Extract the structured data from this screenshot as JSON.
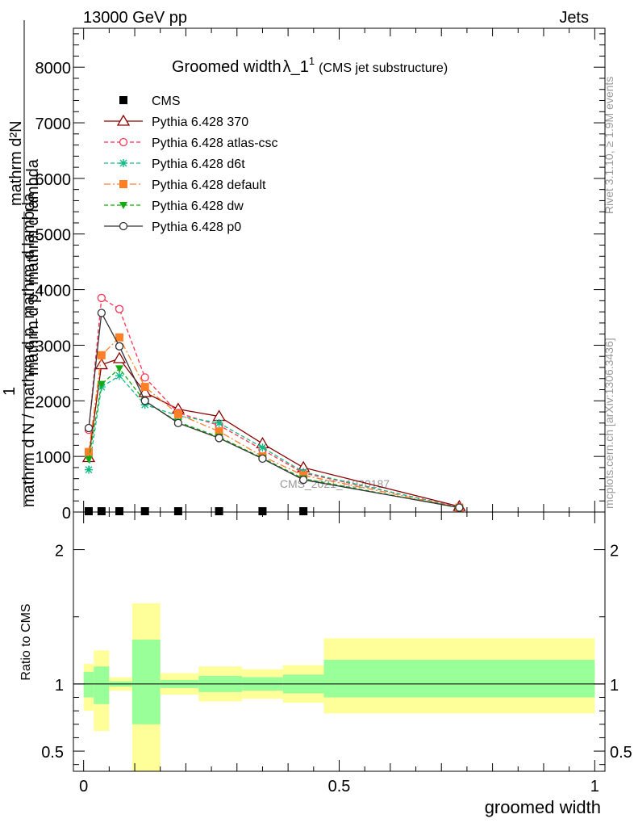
{
  "header": {
    "left": "13000 GeV pp",
    "right": "Jets"
  },
  "side_labels": {
    "top": "Rivet 3.1.10, ≥ 1.9M events",
    "bottom": "mcplots.cern.ch [arXiv:1306.3436]"
  },
  "watermark": "CMS_2021_I1920187",
  "colors": {
    "cms": "#000000",
    "p370": "#8b0000",
    "atlas": "#ff3355",
    "d6t": "#11bb88",
    "default": "#ff7f27",
    "dw": "#11aa11",
    "p0": "#333333",
    "band_inner": "#99ff99",
    "band_outer": "#ffff99"
  },
  "chart_data": [
    {
      "type": "line",
      "title_main": "Groomed width",
      "title_sym": "λ_1",
      "title_sup": "1",
      "title_sub": "(CMS jet substructure)",
      "ylabel_top": "mathrm d²N",
      "ylabel_top2": "mathrm d p_mathrm d lambda",
      "ylabel_one": "1",
      "ylabel_bottom": "mathrm d N / mathrm d p_mathrm d lambda",
      "xlim": [
        -0.02,
        1.02
      ],
      "ylim": [
        0,
        8700
      ],
      "yticks": [
        0,
        1000,
        2000,
        3000,
        4000,
        5000,
        6000,
        7000,
        8000
      ],
      "ytick_labels": [
        "0",
        "1000",
        "2000",
        "3000",
        "4000",
        "5000",
        "6000",
        "7000",
        "8000"
      ],
      "series": [
        {
          "name": "CMS",
          "key": "cms",
          "marker": "square",
          "x": [
            0.01,
            0.035,
            0.07,
            0.12,
            0.185,
            0.265,
            0.35,
            0.43
          ],
          "y": [
            0,
            0,
            0,
            0,
            0,
            0,
            0,
            0
          ]
        },
        {
          "name": "Pythia 6.428 370",
          "key": "p370",
          "marker": "triangle-open",
          "dash": "",
          "x": [
            0.01,
            0.035,
            0.07,
            0.12,
            0.185,
            0.265,
            0.35,
            0.43,
            0.735
          ],
          "y": [
            980,
            2650,
            2760,
            2150,
            1850,
            1720,
            1230,
            800,
            100
          ]
        },
        {
          "name": "Pythia 6.428 atlas-csc",
          "key": "atlas",
          "marker": "circle-open",
          "dash": "5,3",
          "x": [
            0.01,
            0.035,
            0.07,
            0.12,
            0.185,
            0.265,
            0.35,
            0.43,
            0.735
          ],
          "y": [
            1480,
            3850,
            3650,
            2420,
            1780,
            1560,
            1120,
            700,
            90
          ]
        },
        {
          "name": "Pythia 6.428 d6t",
          "key": "d6t",
          "marker": "star",
          "dash": "5,3",
          "x": [
            0.01,
            0.035,
            0.07,
            0.12,
            0.185,
            0.265,
            0.35,
            0.43,
            0.735
          ],
          "y": [
            760,
            2250,
            2450,
            1930,
            1730,
            1600,
            1160,
            720,
            80
          ]
        },
        {
          "name": "Pythia 6.428 default",
          "key": "default",
          "marker": "square",
          "dash": "8,3,2,3",
          "x": [
            0.01,
            0.035,
            0.07,
            0.12,
            0.185,
            0.265,
            0.35,
            0.43,
            0.735
          ],
          "y": [
            1080,
            2820,
            3140,
            2250,
            1760,
            1450,
            1000,
            660,
            80
          ]
        },
        {
          "name": "Pythia 6.428 dw",
          "key": "dw",
          "marker": "triangle-down",
          "dash": "5,3",
          "x": [
            0.01,
            0.035,
            0.07,
            0.12,
            0.185,
            0.265,
            0.35,
            0.43,
            0.735
          ],
          "y": [
            950,
            2300,
            2580,
            1990,
            1620,
            1350,
            970,
            600,
            75
          ]
        },
        {
          "name": "Pythia 6.428 p0",
          "key": "p0",
          "marker": "circle-open",
          "dash": "",
          "x": [
            0.01,
            0.035,
            0.07,
            0.12,
            0.185,
            0.265,
            0.35,
            0.43,
            0.735
          ],
          "y": [
            1510,
            3580,
            2980,
            2000,
            1600,
            1330,
            960,
            580,
            80
          ]
        }
      ]
    },
    {
      "type": "area",
      "ylabel": "Ratio to CMS",
      "xlabel": "groomed width",
      "xlim": [
        -0.02,
        1.02
      ],
      "ylim": [
        0.35,
        2.28
      ],
      "yticks": [
        0.5,
        1,
        2
      ],
      "ytick_labels": [
        "0.5",
        "1",
        "2"
      ],
      "xticks": [
        0,
        0.5,
        1
      ],
      "xtick_labels": [
        "0",
        "0.5",
        "1"
      ],
      "reference_line": 1,
      "bands": [
        {
          "x0": 0.0,
          "x1": 0.02,
          "inner": [
            0.9,
            1.09
          ],
          "outer": [
            0.8,
            1.15
          ]
        },
        {
          "x0": 0.02,
          "x1": 0.05,
          "inner": [
            0.85,
            1.13
          ],
          "outer": [
            0.65,
            1.25
          ]
        },
        {
          "x0": 0.05,
          "x1": 0.095,
          "inner": [
            0.98,
            1.02
          ],
          "outer": [
            0.95,
            1.05
          ]
        },
        {
          "x0": 0.095,
          "x1": 0.15,
          "inner": [
            0.7,
            1.33
          ],
          "outer": [
            0.35,
            1.6
          ]
        },
        {
          "x0": 0.15,
          "x1": 0.225,
          "inner": [
            0.97,
            1.03
          ],
          "outer": [
            0.92,
            1.08
          ]
        },
        {
          "x0": 0.225,
          "x1": 0.31,
          "inner": [
            0.94,
            1.06
          ],
          "outer": [
            0.87,
            1.13
          ]
        },
        {
          "x0": 0.31,
          "x1": 0.39,
          "inner": [
            0.95,
            1.05
          ],
          "outer": [
            0.89,
            1.11
          ]
        },
        {
          "x0": 0.39,
          "x1": 0.47,
          "inner": [
            0.93,
            1.07
          ],
          "outer": [
            0.86,
            1.14
          ]
        },
        {
          "x0": 0.47,
          "x1": 1.0,
          "inner": [
            0.9,
            1.18
          ],
          "outer": [
            0.78,
            1.34
          ]
        }
      ]
    }
  ]
}
